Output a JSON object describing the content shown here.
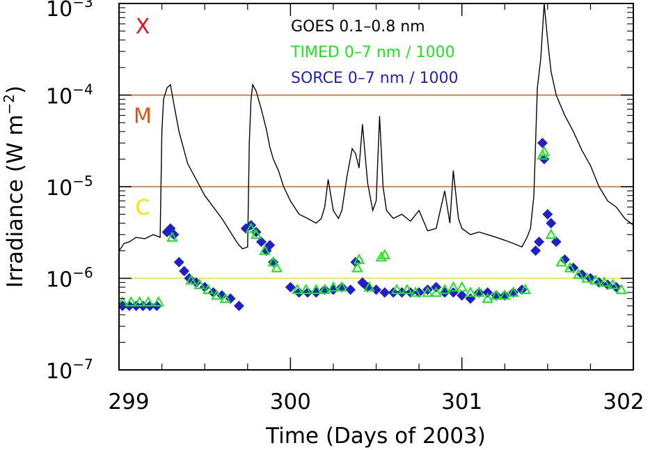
{
  "chart_data": {
    "type": "line",
    "xlabel": "Time (Days of 2003)",
    "ylabel_text": "Irradiance (W m",
    "ylabel_sup": "−2",
    "ylabel_close": ")",
    "y_scale": "log",
    "xlim": [
      299,
      302
    ],
    "ylim": [
      1e-07,
      0.001
    ],
    "x_ticks": [
      "299",
      "300",
      "301",
      "302"
    ],
    "y_ticks": [
      {
        "base": "10",
        "exp": "−7",
        "value": 1e-07
      },
      {
        "base": "10",
        "exp": "−6",
        "value": 1e-06
      },
      {
        "base": "10",
        "exp": "−5",
        "value": 1e-05
      },
      {
        "base": "10",
        "exp": "−4",
        "value": 0.0001
      },
      {
        "base": "10",
        "exp": "−3",
        "value": 0.001
      }
    ],
    "grid": false,
    "legend_position": "top-center",
    "thresholds": [
      {
        "label": "X",
        "value": 0.001,
        "color": "#e8101a",
        "draw_line": false
      },
      {
        "label": "M",
        "value": 0.0001,
        "color": "#e85010",
        "draw_line": true
      },
      {
        "label": "C",
        "value": 1e-05,
        "color": "#f2e600",
        "draw_line": true,
        "line_color": "#e86010"
      },
      {
        "label": "",
        "value": 1e-06,
        "color": "#f2e600",
        "draw_line": true
      }
    ],
    "series": [
      {
        "name": "GOES 0.1–0.8 nm",
        "color": "#000000",
        "style": "line",
        "x": [
          299.0,
          299.03,
          299.06,
          299.1,
          299.15,
          299.2,
          299.24,
          299.25,
          299.26,
          299.28,
          299.3,
          299.32,
          299.35,
          299.4,
          299.45,
          299.5,
          299.55,
          299.6,
          299.65,
          299.68,
          299.7,
          299.72,
          299.75,
          299.76,
          299.77,
          299.78,
          299.8,
          299.83,
          299.86,
          299.88,
          299.9,
          299.93,
          299.96,
          300.0,
          300.05,
          300.1,
          300.15,
          300.18,
          300.2,
          300.22,
          300.25,
          300.28,
          300.3,
          300.33,
          300.36,
          300.38,
          300.4,
          300.42,
          300.45,
          300.48,
          300.5,
          300.52,
          300.54,
          300.56,
          300.6,
          300.65,
          300.7,
          300.75,
          300.8,
          300.85,
          300.9,
          300.93,
          300.95,
          300.98,
          301.0,
          301.05,
          301.1,
          301.15,
          301.2,
          301.25,
          301.3,
          301.35,
          301.38,
          301.4,
          301.42,
          301.44,
          301.46,
          301.48,
          301.5,
          301.52,
          301.55,
          301.6,
          301.65,
          301.7,
          301.75,
          301.8,
          301.85,
          301.9,
          301.95,
          302.0
        ],
        "y": [
          2e-06,
          2.4e-06,
          2.5e-06,
          2.8e-06,
          2.7e-06,
          3e-06,
          2.8e-06,
          4e-05,
          9e-05,
          0.00012,
          0.00013,
          8e-05,
          4e-05,
          1.8e-05,
          1.2e-05,
          8e-06,
          6e-06,
          4.5e-06,
          3.2e-06,
          2.6e-06,
          2.3e-06,
          2.1e-06,
          2.2e-06,
          3e-05,
          9e-05,
          0.00013,
          0.00011,
          7e-05,
          4.2e-05,
          2.7e-05,
          2e-05,
          1.5e-05,
          1e-05,
          7e-06,
          5e-06,
          4.5e-06,
          4e-06,
          4.5e-06,
          6e-06,
          1.2e-05,
          5.5e-06,
          4.5e-06,
          5.5e-06,
          1.3e-05,
          2.6e-05,
          2.3e-05,
          1.6e-05,
          4.8e-05,
          1.1e-05,
          5.5e-06,
          7e-06,
          5.9e-05,
          1e-05,
          5.5e-06,
          4.5e-06,
          5e-06,
          4.2e-06,
          5.5e-06,
          3.3e-06,
          3.5e-06,
          9e-06,
          4e-06,
          1.5e-05,
          4.5e-06,
          3.5e-06,
          3e-06,
          3.2e-06,
          3e-06,
          2.8e-06,
          2.6e-06,
          2.4e-06,
          2.2e-06,
          2.8e-06,
          3.5e-06,
          8e-06,
          0.00012,
          0.00025,
          0.001,
          0.0004,
          0.00018,
          0.0001,
          6e-05,
          4e-05,
          2.5e-05,
          1.7e-05,
          1e-05,
          7e-06,
          6e-06,
          4.5e-06,
          3.8e-06
        ]
      },
      {
        "name": "TIMED 0–7 nm / 1000",
        "color": "#18e818",
        "style": "triangle",
        "x": [
          299.02,
          299.07,
          299.12,
          299.17,
          299.23,
          299.31,
          299.42,
          299.47,
          299.52,
          299.57,
          299.62,
          299.77,
          299.8,
          299.85,
          299.9,
          299.92,
          300.04,
          300.09,
          300.15,
          300.2,
          300.25,
          300.3,
          300.39,
          300.4,
          300.46,
          300.53,
          300.55,
          300.62,
          300.68,
          300.73,
          300.8,
          300.85,
          300.9,
          300.95,
          301.0,
          301.05,
          301.1,
          301.15,
          301.2,
          301.25,
          301.3,
          301.37,
          301.47,
          301.48,
          301.52,
          301.58,
          301.63,
          301.68,
          301.73,
          301.78,
          301.83,
          301.88,
          301.93
        ],
        "y": [
          5.5e-07,
          5.5e-07,
          5.5e-07,
          5.5e-07,
          5.5e-07,
          2.8e-06,
          9.5e-07,
          8.5e-07,
          7.5e-07,
          6.5e-07,
          6e-07,
          3.5e-06,
          3e-06,
          2e-06,
          1.5e-06,
          1.3e-06,
          7.5e-07,
          7.5e-07,
          7.5e-07,
          7.5e-07,
          8e-07,
          8e-07,
          1.3e-06,
          1.6e-06,
          8e-07,
          1.7e-06,
          1.8e-06,
          7.5e-07,
          7.5e-07,
          7e-07,
          7e-07,
          7e-07,
          7.5e-07,
          8e-07,
          8e-07,
          7e-07,
          7e-07,
          6e-07,
          6.5e-07,
          6.5e-07,
          7e-07,
          7.5e-07,
          2.2e-05,
          2.4e-05,
          3e-06,
          1.5e-06,
          1.3e-06,
          1.1e-06,
          1e-06,
          9.5e-07,
          9e-07,
          8.5e-07,
          7.5e-07
        ]
      },
      {
        "name": "SORCE 0–7 nm / 1000",
        "color": "#2020c8",
        "style": "diamond",
        "x": [
          299.02,
          299.06,
          299.1,
          299.14,
          299.18,
          299.22,
          299.28,
          299.3,
          299.32,
          299.35,
          299.38,
          299.41,
          299.45,
          299.5,
          299.55,
          299.6,
          299.65,
          299.7,
          299.74,
          299.77,
          299.8,
          299.83,
          299.86,
          299.88,
          299.9,
          300.0,
          300.05,
          300.1,
          300.15,
          300.2,
          300.25,
          300.3,
          300.35,
          300.38,
          300.42,
          300.45,
          300.5,
          300.55,
          300.6,
          300.65,
          300.7,
          300.75,
          300.8,
          300.85,
          300.9,
          300.95,
          301.0,
          301.05,
          301.1,
          301.15,
          301.2,
          301.25,
          301.3,
          301.35,
          301.43,
          301.45,
          301.47,
          301.48,
          301.5,
          301.52,
          301.55,
          301.6,
          301.65,
          301.7,
          301.75,
          301.8,
          301.85,
          301.9
        ],
        "y": [
          5e-07,
          5e-07,
          5e-07,
          5e-07,
          5e-07,
          5e-07,
          3.2e-06,
          3.5e-06,
          3e-06,
          1.5e-06,
          1.2e-06,
          1e-06,
          9e-07,
          8e-07,
          7e-07,
          6.5e-07,
          6e-07,
          5e-07,
          3.5e-06,
          3.8e-06,
          3.2e-06,
          2.5e-06,
          2e-06,
          2.3e-06,
          1.5e-06,
          8e-07,
          7e-07,
          7e-07,
          7e-07,
          7.5e-07,
          7.5e-07,
          8e-07,
          7.5e-07,
          1.5e-06,
          9e-07,
          8e-07,
          7.5e-07,
          7e-07,
          7e-07,
          7e-07,
          7e-07,
          7e-07,
          7.5e-07,
          8e-07,
          7e-07,
          7e-07,
          6.5e-07,
          6e-07,
          7e-07,
          7e-07,
          6.5e-07,
          6.5e-07,
          7e-07,
          7.5e-07,
          2e-06,
          2.5e-06,
          3e-05,
          2e-05,
          5e-06,
          4e-06,
          2.5e-06,
          1.6e-06,
          1.3e-06,
          1.1e-06,
          1e-06,
          9e-07,
          8.5e-07,
          8e-07
        ]
      }
    ]
  }
}
